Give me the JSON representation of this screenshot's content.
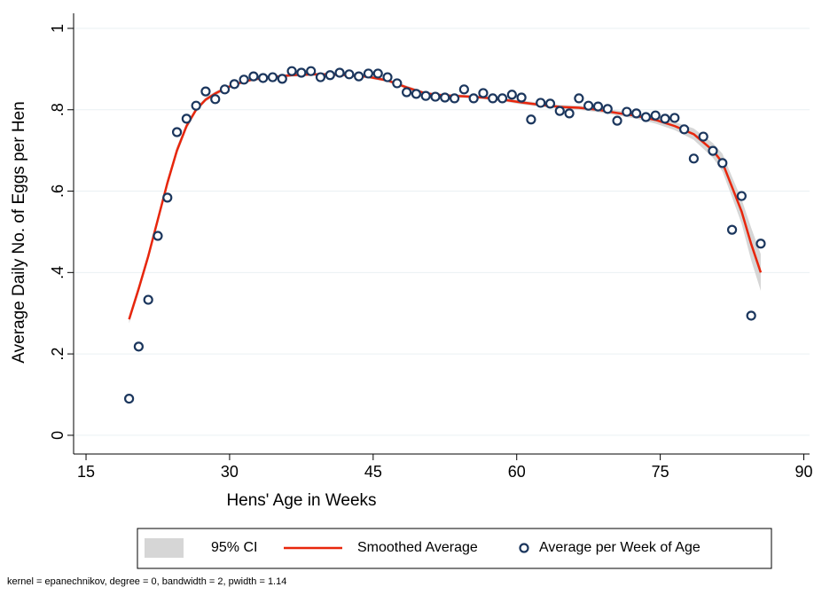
{
  "chart_data": {
    "type": "scatter",
    "x_label": "Hens' Age in Weeks",
    "y_label": "Average Daily No. of Eggs per Hen",
    "note": "kernel = epanechnikov, degree = 0, bandwidth = 2, pwidth = 1.14",
    "xlim": [
      13.7,
      90.6
    ],
    "ylim": [
      -0.046,
      1.037
    ],
    "xticks": [
      15,
      30,
      45,
      60,
      75,
      90
    ],
    "yticks": [
      0,
      {
        "value": 0.2,
        "label": ".2"
      },
      {
        "value": 0.4,
        "label": ".4"
      },
      {
        "value": 0.6,
        "label": ".6"
      },
      {
        "value": 0.8,
        "label": ".8"
      },
      1
    ],
    "grid": true,
    "legend": "bottom",
    "series": [
      {
        "name": "95% CI",
        "kind": "band",
        "color": "#d6d6d6",
        "x": [
          19.5,
          20.5,
          21.5,
          22.5,
          23.5,
          24.5,
          25.5,
          26.5,
          27.5,
          28.5,
          29.5,
          30.5,
          32.5,
          34.5,
          36.5,
          38.5,
          40.5,
          42.5,
          44.5,
          46.5,
          48.5,
          50.5,
          52.5,
          54.5,
          56.5,
          58.5,
          60.5,
          62.5,
          64.5,
          66.5,
          68.5,
          70.5,
          72.5,
          74.5,
          76.5,
          78.5,
          80.5,
          81.5,
          82.5,
          83.5,
          84.5,
          85.5
        ],
        "lower": [
          0.275,
          0.35,
          0.43,
          0.52,
          0.61,
          0.69,
          0.752,
          0.794,
          0.82,
          0.835,
          0.847,
          0.858,
          0.871,
          0.876,
          0.881,
          0.883,
          0.883,
          0.881,
          0.877,
          0.868,
          0.851,
          0.836,
          0.831,
          0.829,
          0.826,
          0.821,
          0.813,
          0.807,
          0.802,
          0.8,
          0.794,
          0.786,
          0.778,
          0.766,
          0.75,
          0.726,
          0.682,
          0.648,
          0.585,
          0.52,
          0.43,
          0.355
        ],
        "upper": [
          0.295,
          0.37,
          0.45,
          0.54,
          0.63,
          0.71,
          0.768,
          0.806,
          0.83,
          0.845,
          0.857,
          0.866,
          0.879,
          0.884,
          0.889,
          0.891,
          0.891,
          0.889,
          0.885,
          0.876,
          0.859,
          0.844,
          0.839,
          0.837,
          0.834,
          0.829,
          0.823,
          0.817,
          0.812,
          0.81,
          0.806,
          0.798,
          0.792,
          0.784,
          0.77,
          0.754,
          0.718,
          0.692,
          0.635,
          0.58,
          0.51,
          0.445
        ]
      },
      {
        "name": "Smoothed Average",
        "kind": "line",
        "color": "#e8260c",
        "x": [
          19.5,
          20.5,
          21.5,
          22.5,
          23.5,
          24.5,
          25.5,
          26.5,
          27.5,
          28.5,
          29.5,
          30.5,
          32.5,
          34.5,
          36.5,
          38.5,
          40.5,
          42.5,
          44.5,
          46.5,
          48.5,
          50.5,
          52.5,
          54.5,
          56.5,
          58.5,
          60.5,
          62.5,
          64.5,
          66.5,
          68.5,
          70.5,
          72.5,
          74.5,
          76.5,
          78.5,
          80.5,
          81.5,
          82.5,
          83.5,
          84.5,
          85.5
        ],
        "values": [
          0.285,
          0.36,
          0.44,
          0.53,
          0.62,
          0.7,
          0.76,
          0.8,
          0.825,
          0.84,
          0.852,
          0.862,
          0.875,
          0.88,
          0.885,
          0.887,
          0.887,
          0.885,
          0.881,
          0.872,
          0.855,
          0.84,
          0.835,
          0.833,
          0.83,
          0.825,
          0.818,
          0.812,
          0.807,
          0.805,
          0.8,
          0.792,
          0.785,
          0.775,
          0.76,
          0.74,
          0.7,
          0.67,
          0.61,
          0.55,
          0.47,
          0.4
        ]
      },
      {
        "name": "Average per Week of Age",
        "kind": "points",
        "color": "#1b365d",
        "x": [
          19.5,
          20.5,
          21.5,
          22.5,
          23.5,
          24.5,
          25.5,
          26.5,
          27.5,
          28.5,
          29.5,
          30.5,
          31.5,
          32.5,
          33.5,
          34.5,
          35.5,
          36.5,
          37.5,
          38.5,
          39.5,
          40.5,
          41.5,
          42.5,
          43.5,
          44.5,
          45.5,
          46.5,
          47.5,
          48.5,
          49.5,
          50.5,
          51.5,
          52.5,
          53.5,
          54.5,
          55.5,
          56.5,
          57.5,
          58.5,
          59.5,
          60.5,
          61.5,
          62.5,
          63.5,
          64.5,
          65.5,
          66.5,
          67.5,
          68.5,
          69.5,
          70.5,
          71.5,
          72.5,
          73.5,
          74.5,
          75.5,
          76.5,
          77.5,
          78.5,
          79.5,
          80.5,
          81.5,
          82.5,
          83.5,
          84.5,
          85.5
        ],
        "values": [
          0.09,
          0.218,
          0.333,
          0.49,
          0.584,
          0.745,
          0.778,
          0.81,
          0.845,
          0.826,
          0.85,
          0.863,
          0.874,
          0.882,
          0.878,
          0.88,
          0.876,
          0.895,
          0.891,
          0.895,
          0.88,
          0.885,
          0.891,
          0.887,
          0.882,
          0.889,
          0.889,
          0.88,
          0.865,
          0.843,
          0.839,
          0.834,
          0.832,
          0.83,
          0.828,
          0.85,
          0.828,
          0.841,
          0.828,
          0.828,
          0.837,
          0.83,
          0.776,
          0.817,
          0.815,
          0.797,
          0.791,
          0.828,
          0.81,
          0.808,
          0.802,
          0.773,
          0.795,
          0.791,
          0.782,
          0.786,
          0.778,
          0.78,
          0.752,
          0.68,
          0.734,
          0.699,
          0.669,
          0.505,
          0.588,
          0.294,
          0.471
        ]
      }
    ]
  }
}
